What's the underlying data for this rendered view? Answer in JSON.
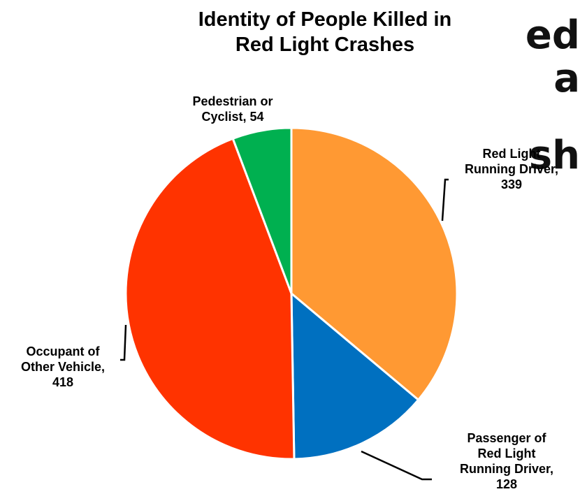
{
  "background_fragment": {
    "lines": [
      "ed",
      "a",
      "sh"
    ]
  },
  "chart_data": {
    "type": "pie",
    "title_lines": [
      "Identity of People Killed in",
      "Red Light Crashes"
    ],
    "slices": [
      {
        "label_lines": [
          "Red Light",
          "Running Driver,",
          "339"
        ],
        "name": "Red Light Running Driver",
        "value": 339,
        "color": "#FF9933"
      },
      {
        "label_lines": [
          "Passenger of",
          "Red Light",
          "Running Driver,",
          "128"
        ],
        "name": "Passenger of Red Light Running Driver",
        "value": 128,
        "color": "#0070C0"
      },
      {
        "label_lines": [
          "Occupant of",
          "Other Vehicle,",
          "418"
        ],
        "name": "Occupant of Other Vehicle",
        "value": 418,
        "color": "#FF3300"
      },
      {
        "label_lines": [
          "Pedestrian or",
          "Cyclist, 54"
        ],
        "name": "Pedestrian or Cyclist",
        "value": 54,
        "color": "#00B050"
      }
    ],
    "start_angle": "12 o'clock",
    "direction": "clockwise",
    "legend": "none"
  }
}
